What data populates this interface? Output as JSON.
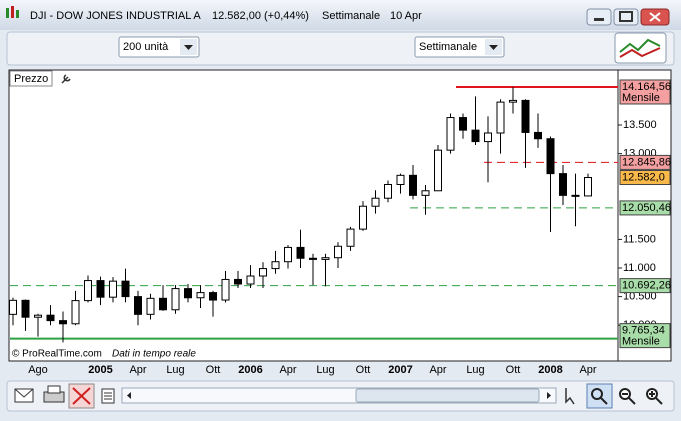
{
  "window": {
    "title": "DJI - DOW JONES INDUSTRIAL A",
    "price": "12.582,00 (+0,44%)",
    "period": "Settimanale",
    "date": "10 Apr"
  },
  "toolbar": {
    "units": "200 unità",
    "timeframe": "Settimanale"
  },
  "chart_data": {
    "type": "candlestick",
    "panel_title": "Prezzo",
    "categories": [
      null,
      null,
      "Ago",
      null,
      null,
      null,
      null,
      "2005",
      null,
      null,
      "Apr",
      null,
      null,
      "Lug",
      null,
      null,
      "Ott",
      null,
      null,
      "2006",
      null,
      null,
      "Apr",
      null,
      null,
      "Lug",
      null,
      null,
      "Ott",
      null,
      null,
      "2007",
      null,
      null,
      "Apr",
      null,
      null,
      "Lug",
      null,
      null,
      "Ott",
      null,
      null,
      "2008",
      null,
      null,
      "Apr"
    ],
    "open": [
      10190,
      10435,
      10140,
      10175,
      10080,
      10025,
      10430,
      10780,
      10490,
      10770,
      10500,
      10190,
      10470,
      10270,
      10640,
      10480,
      10570,
      10440,
      10800,
      10720,
      10860,
      10990,
      11110,
      11360,
      11170,
      11150,
      11180,
      11380,
      11680,
      12080,
      12220,
      12460,
      12620,
      12270,
      12350,
      13060,
      13630,
      13410,
      13210,
      13360,
      13900,
      13930,
      13370,
      13260,
      12650,
      12270,
      12260
    ],
    "high": [
      10480,
      10450,
      10200,
      10350,
      10240,
      10600,
      10870,
      10850,
      10840,
      10990,
      10600,
      10550,
      10700,
      10700,
      10720,
      10700,
      10600,
      10950,
      10950,
      11050,
      11100,
      11300,
      11400,
      11670,
      11250,
      11250,
      11450,
      11720,
      12170,
      12360,
      12530,
      12650,
      12800,
      12450,
      13150,
      13700,
      13700,
      14000,
      13650,
      13950,
      14160,
      13950,
      13700,
      13300,
      12800,
      12650,
      12650
    ],
    "low": [
      10000,
      9900,
      9800,
      10000,
      9700,
      10000,
      10400,
      10350,
      10400,
      10400,
      10000,
      10100,
      10250,
      10200,
      10400,
      10300,
      10150,
      10400,
      10650,
      10650,
      10650,
      10900,
      10990,
      11000,
      10700,
      10680,
      11000,
      11300,
      11650,
      11950,
      12150,
      12300,
      12200,
      11930,
      12350,
      13000,
      13260,
      13150,
      12500,
      13000,
      13700,
      12750,
      13100,
      11630,
      12100,
      11730,
      12250
    ],
    "close": [
      10435,
      10140,
      10175,
      10080,
      10025,
      10430,
      10780,
      10490,
      10770,
      10500,
      10190,
      10470,
      10270,
      10640,
      10480,
      10570,
      10440,
      10800,
      10720,
      10860,
      10990,
      11110,
      11360,
      11170,
      11150,
      11180,
      11380,
      11680,
      12080,
      12220,
      12460,
      12620,
      12270,
      12350,
      13060,
      13630,
      13410,
      13210,
      13360,
      13900,
      13930,
      13370,
      13260,
      12650,
      12270,
      12260,
      12582
    ],
    "up_color": "#ffffff",
    "down_color": "#000000",
    "ylim": [
      9654,
      14444
    ],
    "yticks": [
      {
        "value": 10000,
        "label": "10.000"
      },
      {
        "value": 10500,
        "label": "10.500"
      },
      {
        "value": 11000,
        "label": "11.000"
      },
      {
        "value": 11500,
        "label": "11.500"
      },
      {
        "value": 13000,
        "label": "13.000"
      },
      {
        "value": 13500,
        "label": "13.500"
      }
    ],
    "levels": [
      {
        "value": 14164.56,
        "label": "14.164,56",
        "note": "Mensile",
        "color": "#e0141a",
        "box": "#f4a0a0",
        "style": "solid"
      },
      {
        "value": 12845.86,
        "label": "12.845,86",
        "color": "#e0141a",
        "box": "#f4a0a0",
        "style": "dashed"
      },
      {
        "value": 12582,
        "label": "12.582,0",
        "color": "#f5a623",
        "box": "#f8b84a",
        "style": "none"
      },
      {
        "value": 12050.46,
        "label": "12.050,46",
        "color": "#2ea043",
        "box": "#a8dca8",
        "style": "dashed"
      },
      {
        "value": 10692.26,
        "label": "10.692,26",
        "color": "#2ea043",
        "box": "#a8dca8",
        "style": "dashed"
      },
      {
        "value": 9765.34,
        "label": "9.765,34",
        "note": "Mensile",
        "color": "#2ea043",
        "box": "#a8dca8",
        "style": "solid"
      }
    ],
    "footer": "© ProRealTime.com",
    "footer_note": "Dati in tempo reale"
  }
}
